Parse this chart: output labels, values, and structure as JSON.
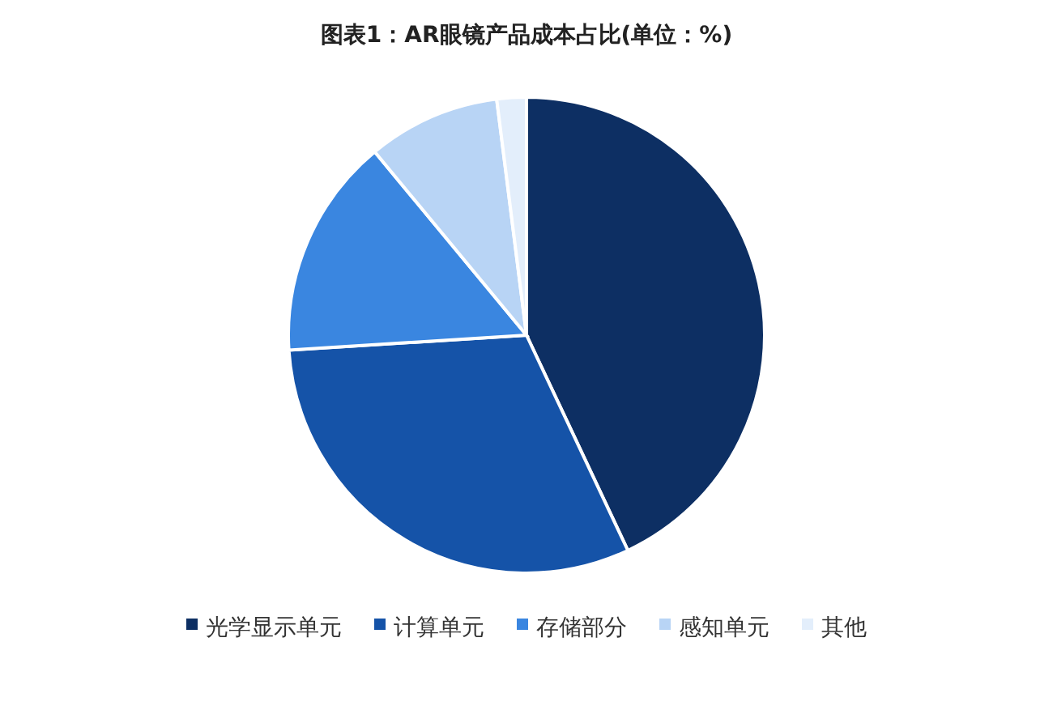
{
  "chart_data": {
    "type": "pie",
    "title": "图表1：AR眼镜产品成本占比(单位：%)",
    "categories": [
      "光学显示单元",
      "计算单元",
      "存储部分",
      "感知单元",
      "其他"
    ],
    "values": [
      43,
      31,
      15,
      9,
      2
    ],
    "colors": [
      "#0d2f63",
      "#1553a8",
      "#3a86e0",
      "#b8d4f5",
      "#e3eefb"
    ],
    "legend": "bottom"
  }
}
